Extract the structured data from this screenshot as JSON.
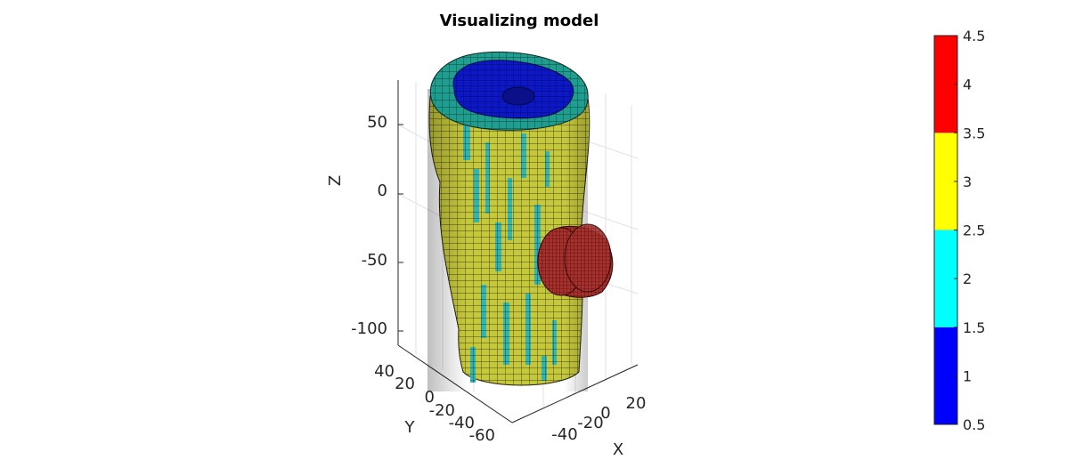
{
  "chart_data": {
    "type": "surface3d",
    "title": "Visualizing model",
    "xlabel": "X",
    "ylabel": "Y",
    "zlabel": "Z",
    "x_ticks": [
      "-40",
      "-20",
      "0",
      "20"
    ],
    "y_ticks": [
      "40",
      "20",
      "0",
      "-20",
      "-40",
      "-60"
    ],
    "z_ticks": [
      "50",
      "0",
      "-50",
      "-100"
    ],
    "grid": true,
    "colorbar": {
      "ticks": [
        "4.5",
        "4",
        "3.5",
        "3",
        "2.5",
        "2",
        "1.5",
        "1",
        "0.5"
      ],
      "range": [
        0.5,
        4.5
      ],
      "bands": [
        {
          "from": 0.5,
          "to": 1.5,
          "color": "#0000ff"
        },
        {
          "from": 1.5,
          "to": 2.5,
          "color": "#00ffff"
        },
        {
          "from": 2.5,
          "to": 3.5,
          "color": "#ffff00"
        },
        {
          "from": 3.5,
          "to": 4.5,
          "color": "#ff0000"
        }
      ]
    },
    "mesh_colors": {
      "body": "#c6c83c",
      "body_accent": "#2ab5b5",
      "top_rim": "#1f9e8f",
      "top_inner": "#0c18c8",
      "side_disc": "#a8302a"
    }
  }
}
